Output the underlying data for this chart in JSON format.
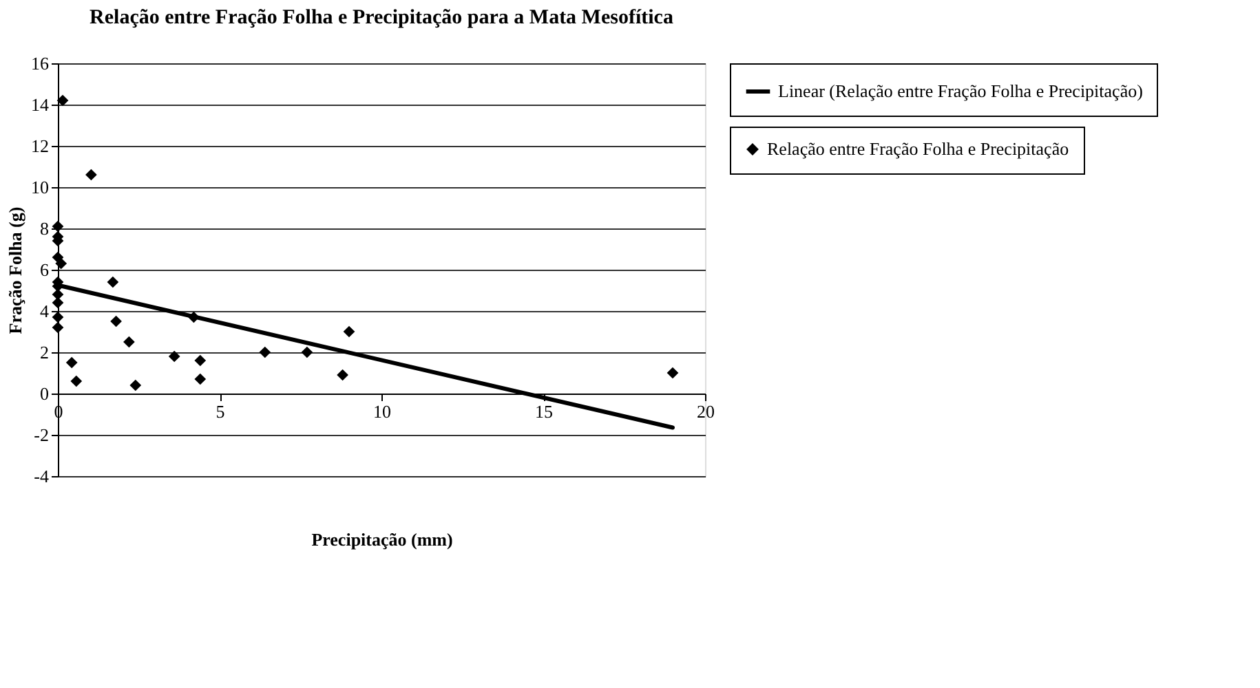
{
  "chart_data": {
    "type": "scatter",
    "title": "Relação entre Fração Folha e Precipitação para a Mata Mesofítica",
    "xlabel": "Precipitação (mm)",
    "ylabel": "Fração Folha (g)",
    "xlim": [
      0,
      20
    ],
    "xticks": [
      0,
      5,
      10,
      15,
      20
    ],
    "ylim": [
      -4,
      16
    ],
    "yticks": [
      -4,
      -2,
      0,
      2,
      4,
      6,
      8,
      10,
      12,
      14,
      16
    ],
    "grid": "y",
    "legend": "right",
    "series": [
      {
        "name": "Relação entre Fração Folha e Precipitação",
        "marker": "diamond",
        "color": "#000000",
        "x": [
          0.15,
          1.03,
          0,
          0,
          0,
          0,
          0.1,
          0,
          0,
          0,
          0,
          0,
          0,
          1.7,
          1.8,
          2.2,
          0.43,
          0.57,
          2.4,
          3.6,
          4.2,
          4.4,
          4.4,
          6.4,
          7.7,
          9.0,
          8.8,
          19.0
        ],
        "values": [
          14.2,
          10.6,
          8.1,
          7.6,
          7.4,
          6.6,
          6.3,
          5.4,
          5.2,
          4.8,
          4.4,
          3.7,
          3.2,
          5.4,
          3.5,
          2.5,
          1.5,
          0.6,
          0.4,
          1.8,
          3.7,
          1.6,
          0.7,
          2.0,
          2.0,
          3.0,
          0.9,
          1.0
        ]
      },
      {
        "name": "Linear (Relação entre Fração Folha e Precipitação)",
        "type": "line",
        "line_style": "solid",
        "color": "#000000",
        "x": [
          0,
          19
        ],
        "values": [
          5.25,
          -1.65
        ]
      }
    ]
  }
}
